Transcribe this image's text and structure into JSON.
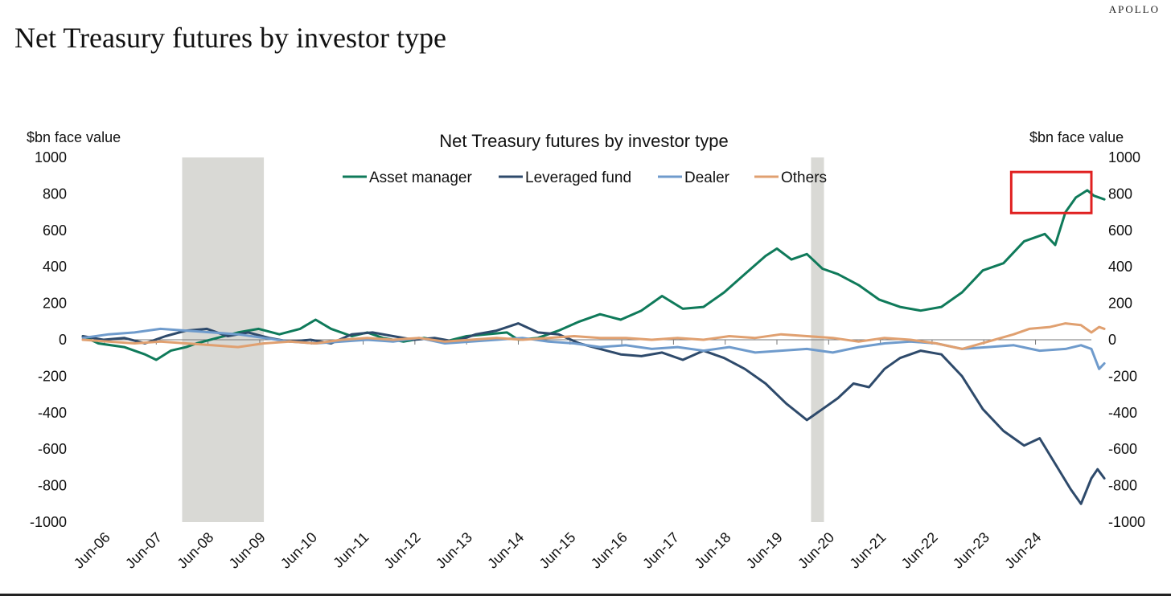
{
  "brand": "APOLLO",
  "page_title": "Net Treasury futures by investor type",
  "chart_data": {
    "type": "line",
    "title": "Net Treasury futures by investor type",
    "ylabel_left": "$bn face value",
    "ylabel_right": "$bn face value",
    "ylim": [
      -1000,
      1000
    ],
    "yticks": [
      1000,
      800,
      600,
      400,
      200,
      0,
      -200,
      -400,
      -600,
      -800,
      -1000
    ],
    "yticks_right": [
      1000,
      800,
      600,
      400,
      200,
      0,
      -200,
      -400,
      -600,
      -800,
      -1000
    ],
    "xlim": [
      2006.0,
      2025.5
    ],
    "xticks": [
      {
        "x": 2006.42,
        "label": "Jun-06"
      },
      {
        "x": 2007.42,
        "label": "Jun-07"
      },
      {
        "x": 2008.42,
        "label": "Jun-08"
      },
      {
        "x": 2009.42,
        "label": "Jun-09"
      },
      {
        "x": 2010.42,
        "label": "Jun-10"
      },
      {
        "x": 2011.42,
        "label": "Jun-11"
      },
      {
        "x": 2012.42,
        "label": "Jun-12"
      },
      {
        "x": 2013.42,
        "label": "Jun-13"
      },
      {
        "x": 2014.42,
        "label": "Jun-14"
      },
      {
        "x": 2015.42,
        "label": "Jun-15"
      },
      {
        "x": 2016.42,
        "label": "Jun-16"
      },
      {
        "x": 2017.42,
        "label": "Jun-17"
      },
      {
        "x": 2018.42,
        "label": "Jun-18"
      },
      {
        "x": 2019.42,
        "label": "Jun-19"
      },
      {
        "x": 2020.42,
        "label": "Jun-20"
      },
      {
        "x": 2021.42,
        "label": "Jun-21"
      },
      {
        "x": 2022.42,
        "label": "Jun-22"
      },
      {
        "x": 2023.42,
        "label": "Jun-23"
      },
      {
        "x": 2024.42,
        "label": "Jun-24"
      }
    ],
    "recessions": [
      {
        "start": 2007.92,
        "end": 2009.5
      },
      {
        "start": 2020.08,
        "end": 2020.33
      }
    ],
    "highlight": {
      "x_start": 2023.95,
      "x_end": 2025.5,
      "y_low": 695,
      "y_high": 920,
      "color": "#e02020"
    },
    "legend_position": "top-center",
    "grid": false,
    "series": [
      {
        "name": "Asset manager",
        "color": "#0f7a5a",
        "points": [
          [
            2006.0,
            20
          ],
          [
            2006.3,
            -20
          ],
          [
            2006.8,
            -40
          ],
          [
            2007.2,
            -80
          ],
          [
            2007.42,
            -110
          ],
          [
            2007.7,
            -60
          ],
          [
            2008.0,
            -40
          ],
          [
            2008.2,
            -20
          ],
          [
            2008.6,
            10
          ],
          [
            2009.0,
            40
          ],
          [
            2009.4,
            60
          ],
          [
            2009.8,
            30
          ],
          [
            2010.2,
            60
          ],
          [
            2010.5,
            110
          ],
          [
            2010.8,
            60
          ],
          [
            2011.2,
            20
          ],
          [
            2011.5,
            40
          ],
          [
            2011.8,
            10
          ],
          [
            2012.2,
            -10
          ],
          [
            2012.6,
            10
          ],
          [
            2013.0,
            -10
          ],
          [
            2013.42,
            20
          ],
          [
            2013.8,
            30
          ],
          [
            2014.2,
            40
          ],
          [
            2014.42,
            0
          ],
          [
            2014.8,
            10
          ],
          [
            2015.2,
            50
          ],
          [
            2015.6,
            100
          ],
          [
            2016.0,
            140
          ],
          [
            2016.4,
            110
          ],
          [
            2016.8,
            160
          ],
          [
            2017.2,
            240
          ],
          [
            2017.6,
            170
          ],
          [
            2018.0,
            180
          ],
          [
            2018.4,
            260
          ],
          [
            2018.8,
            360
          ],
          [
            2019.2,
            460
          ],
          [
            2019.42,
            500
          ],
          [
            2019.7,
            440
          ],
          [
            2020.0,
            470
          ],
          [
            2020.3,
            390
          ],
          [
            2020.6,
            360
          ],
          [
            2021.0,
            300
          ],
          [
            2021.4,
            220
          ],
          [
            2021.8,
            180
          ],
          [
            2022.2,
            160
          ],
          [
            2022.6,
            180
          ],
          [
            2023.0,
            260
          ],
          [
            2023.4,
            380
          ],
          [
            2023.8,
            420
          ],
          [
            2024.2,
            540
          ],
          [
            2024.6,
            580
          ],
          [
            2024.8,
            520
          ],
          [
            2025.0,
            700
          ],
          [
            2025.2,
            780
          ],
          [
            2025.42,
            820
          ],
          [
            2025.55,
            790
          ],
          [
            2025.75,
            770
          ]
        ]
      },
      {
        "name": "Leveraged fund",
        "color": "#2e4a6b",
        "points": [
          [
            2006.0,
            20
          ],
          [
            2006.4,
            0
          ],
          [
            2006.8,
            10
          ],
          [
            2007.2,
            -20
          ],
          [
            2007.6,
            20
          ],
          [
            2008.0,
            50
          ],
          [
            2008.4,
            60
          ],
          [
            2008.8,
            20
          ],
          [
            2009.2,
            40
          ],
          [
            2009.6,
            10
          ],
          [
            2010.0,
            -10
          ],
          [
            2010.4,
            0
          ],
          [
            2010.8,
            -20
          ],
          [
            2011.2,
            30
          ],
          [
            2011.6,
            40
          ],
          [
            2012.0,
            20
          ],
          [
            2012.4,
            0
          ],
          [
            2012.8,
            10
          ],
          [
            2013.2,
            -10
          ],
          [
            2013.6,
            30
          ],
          [
            2014.0,
            50
          ],
          [
            2014.42,
            90
          ],
          [
            2014.8,
            40
          ],
          [
            2015.2,
            30
          ],
          [
            2015.6,
            -20
          ],
          [
            2016.0,
            -50
          ],
          [
            2016.4,
            -80
          ],
          [
            2016.8,
            -90
          ],
          [
            2017.2,
            -70
          ],
          [
            2017.6,
            -110
          ],
          [
            2018.0,
            -60
          ],
          [
            2018.4,
            -100
          ],
          [
            2018.8,
            -160
          ],
          [
            2019.2,
            -240
          ],
          [
            2019.6,
            -350
          ],
          [
            2020.0,
            -440
          ],
          [
            2020.3,
            -380
          ],
          [
            2020.6,
            -320
          ],
          [
            2020.9,
            -240
          ],
          [
            2021.2,
            -260
          ],
          [
            2021.5,
            -160
          ],
          [
            2021.8,
            -100
          ],
          [
            2022.2,
            -60
          ],
          [
            2022.6,
            -80
          ],
          [
            2023.0,
            -200
          ],
          [
            2023.4,
            -380
          ],
          [
            2023.8,
            -500
          ],
          [
            2024.2,
            -580
          ],
          [
            2024.5,
            -540
          ],
          [
            2024.8,
            -680
          ],
          [
            2025.1,
            -820
          ],
          [
            2025.3,
            -900
          ],
          [
            2025.5,
            -760
          ],
          [
            2025.62,
            -710
          ],
          [
            2025.75,
            -760
          ]
        ]
      },
      {
        "name": "Dealer",
        "color": "#6f9bcc",
        "points": [
          [
            2006.0,
            10
          ],
          [
            2006.5,
            30
          ],
          [
            2007.0,
            40
          ],
          [
            2007.5,
            60
          ],
          [
            2008.0,
            50
          ],
          [
            2008.5,
            40
          ],
          [
            2009.0,
            30
          ],
          [
            2009.5,
            10
          ],
          [
            2010.0,
            -10
          ],
          [
            2010.5,
            -20
          ],
          [
            2011.0,
            -10
          ],
          [
            2011.5,
            0
          ],
          [
            2012.0,
            -10
          ],
          [
            2012.5,
            10
          ],
          [
            2013.0,
            -20
          ],
          [
            2013.5,
            -10
          ],
          [
            2014.0,
            0
          ],
          [
            2014.5,
            10
          ],
          [
            2015.0,
            -10
          ],
          [
            2015.5,
            -20
          ],
          [
            2016.0,
            -40
          ],
          [
            2016.5,
            -30
          ],
          [
            2017.0,
            -50
          ],
          [
            2017.5,
            -40
          ],
          [
            2018.0,
            -60
          ],
          [
            2018.5,
            -40
          ],
          [
            2019.0,
            -70
          ],
          [
            2019.5,
            -60
          ],
          [
            2020.0,
            -50
          ],
          [
            2020.5,
            -70
          ],
          [
            2021.0,
            -40
          ],
          [
            2021.5,
            -20
          ],
          [
            2022.0,
            -10
          ],
          [
            2022.5,
            -20
          ],
          [
            2023.0,
            -50
          ],
          [
            2023.5,
            -40
          ],
          [
            2024.0,
            -30
          ],
          [
            2024.5,
            -60
          ],
          [
            2025.0,
            -50
          ],
          [
            2025.3,
            -30
          ],
          [
            2025.5,
            -50
          ],
          [
            2025.65,
            -160
          ],
          [
            2025.75,
            -130
          ]
        ]
      },
      {
        "name": "Others",
        "color": "#e0a070",
        "points": [
          [
            2006.0,
            0
          ],
          [
            2006.5,
            -10
          ],
          [
            2007.0,
            -20
          ],
          [
            2007.5,
            -10
          ],
          [
            2008.0,
            -20
          ],
          [
            2008.5,
            -30
          ],
          [
            2009.0,
            -40
          ],
          [
            2009.5,
            -20
          ],
          [
            2010.0,
            -10
          ],
          [
            2010.5,
            -20
          ],
          [
            2011.0,
            0
          ],
          [
            2011.5,
            10
          ],
          [
            2012.0,
            0
          ],
          [
            2012.5,
            10
          ],
          [
            2013.0,
            -10
          ],
          [
            2013.5,
            0
          ],
          [
            2014.0,
            10
          ],
          [
            2014.5,
            0
          ],
          [
            2015.0,
            10
          ],
          [
            2015.5,
            20
          ],
          [
            2016.0,
            10
          ],
          [
            2016.5,
            10
          ],
          [
            2017.0,
            0
          ],
          [
            2017.5,
            10
          ],
          [
            2018.0,
            0
          ],
          [
            2018.5,
            20
          ],
          [
            2019.0,
            10
          ],
          [
            2019.5,
            30
          ],
          [
            2020.0,
            20
          ],
          [
            2020.5,
            10
          ],
          [
            2021.0,
            -10
          ],
          [
            2021.5,
            10
          ],
          [
            2022.0,
            0
          ],
          [
            2022.5,
            -20
          ],
          [
            2023.0,
            -50
          ],
          [
            2023.5,
            -10
          ],
          [
            2024.0,
            30
          ],
          [
            2024.3,
            60
          ],
          [
            2024.7,
            70
          ],
          [
            2025.0,
            90
          ],
          [
            2025.3,
            80
          ],
          [
            2025.5,
            40
          ],
          [
            2025.65,
            70
          ],
          [
            2025.75,
            60
          ]
        ]
      }
    ]
  }
}
